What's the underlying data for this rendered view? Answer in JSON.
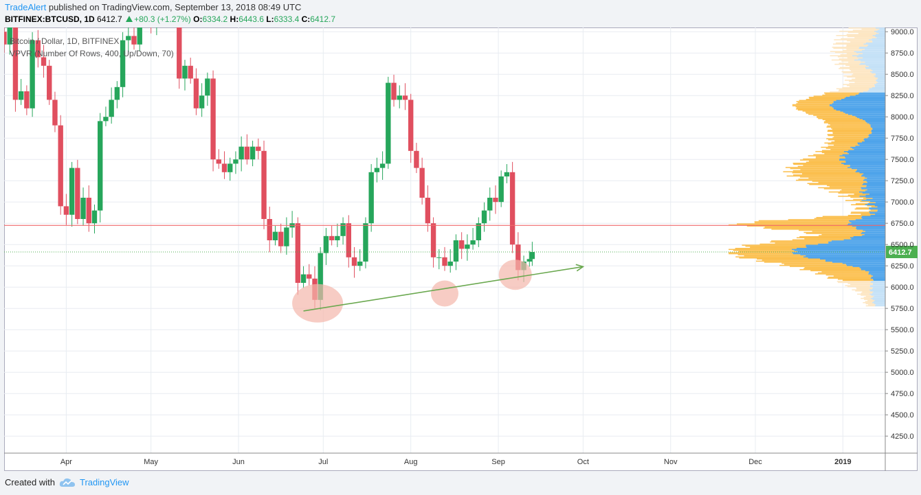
{
  "header": {
    "author": "TradeAlert",
    "published_text": "published on TradingView.com, September 13, 2018 08:49 UTC",
    "symbol": "BITFINEX:BTCUSD, 1D",
    "last": "6412.7",
    "change": "+80.3 (+1.27%)",
    "o_label": "O:",
    "o_value": "6334.2",
    "h_label": "H:",
    "h_value": "6443.6",
    "l_label": "L:",
    "l_value": "6333.4",
    "c_label": "C:",
    "c_value": "6412.7"
  },
  "footer": {
    "created_with": "Created with",
    "brand": "TradingView",
    "logo_icon": "cloud-logo-icon"
  },
  "colors": {
    "up": "#26a65b",
    "down": "#e04f5f",
    "grid": "#e8ecf1",
    "resistance": "#f0696c",
    "price_line": "#4caf50",
    "trend": "#6aa84f",
    "ellipse": "#f4b6ab",
    "vp_up_in": "#fbbf4e",
    "vp_down_in": "#4da3ea",
    "vp_up_out": "#fde6c2",
    "vp_down_out": "#c4e1f7",
    "label_bg": "#4caf50"
  },
  "chart_data": {
    "type": "candlestick",
    "series_name": "Bitcoin / Dollar, 1D, BITFINEX",
    "indicator": "VPVR (Number Of Rows, 400, Up/Down, 70)",
    "y_ticks": [
      "9000.0",
      "8750.0",
      "8500.0",
      "8250.0",
      "8000.0",
      "7750.0",
      "7500.0",
      "7250.0",
      "7000.0",
      "6750.0",
      "6500.0",
      "6250.0",
      "6000.0",
      "5750.0",
      "5500.0",
      "5250.0",
      "5000.0",
      "4750.0",
      "4500.0",
      "4250.0"
    ],
    "x_ticks": [
      {
        "label": "Apr",
        "date": "2018-04-01"
      },
      {
        "label": "May",
        "date": "2018-05-01"
      },
      {
        "label": "Jun",
        "date": "2018-06-01"
      },
      {
        "label": "Jul",
        "date": "2018-07-01"
      },
      {
        "label": "Aug",
        "date": "2018-08-01"
      },
      {
        "label": "Sep",
        "date": "2018-09-01"
      },
      {
        "label": "Oct",
        "date": "2018-10-01"
      },
      {
        "label": "Nov",
        "date": "2018-11-01"
      },
      {
        "label": "Dec",
        "date": "2018-12-01"
      },
      {
        "label": "2019",
        "date": "2019-01-01"
      }
    ],
    "ylim": [
      4050,
      9050
    ],
    "xlim": [
      "2018-03-10",
      "2019-01-16"
    ],
    "last_price": 6412.7,
    "last_price_label": "6412.7",
    "resistance_level": 6725,
    "trendline": {
      "start": [
        "2018-06-24",
        5720
      ],
      "end": [
        "2018-10-01",
        6240
      ]
    },
    "highlight_ellipses": [
      {
        "date": "2018-06-29",
        "price": 5810
      },
      {
        "date": "2018-08-13",
        "price": 5925
      },
      {
        "date": "2018-09-07",
        "price": 6145
      }
    ],
    "closes": [
      {
        "date": "2018-03-10",
        "close": 8850
      },
      {
        "date": "2018-03-12",
        "close": 9200
      },
      {
        "date": "2018-03-14",
        "close": 8200
      },
      {
        "date": "2018-03-16",
        "close": 8300
      },
      {
        "date": "2018-03-18",
        "close": 8100
      },
      {
        "date": "2018-03-20",
        "close": 8900
      },
      {
        "date": "2018-03-22",
        "close": 8700
      },
      {
        "date": "2018-03-24",
        "close": 8600
      },
      {
        "date": "2018-03-26",
        "close": 8200
      },
      {
        "date": "2018-03-28",
        "close": 7900
      },
      {
        "date": "2018-03-30",
        "close": 6950
      },
      {
        "date": "2018-04-01",
        "close": 6850
      },
      {
        "date": "2018-04-03",
        "close": 7400
      },
      {
        "date": "2018-04-05",
        "close": 6800
      },
      {
        "date": "2018-04-07",
        "close": 7050
      },
      {
        "date": "2018-04-09",
        "close": 6750
      },
      {
        "date": "2018-04-11",
        "close": 6900
      },
      {
        "date": "2018-04-13",
        "close": 7950
      },
      {
        "date": "2018-04-15",
        "close": 8000
      },
      {
        "date": "2018-04-17",
        "close": 8200
      },
      {
        "date": "2018-04-19",
        "close": 8350
      },
      {
        "date": "2018-04-21",
        "close": 8900
      },
      {
        "date": "2018-04-23",
        "close": 8950
      },
      {
        "date": "2018-04-25",
        "close": 8850
      },
      {
        "date": "2018-04-27",
        "close": 9250
      },
      {
        "date": "2018-04-29",
        "close": 9300
      },
      {
        "date": "2018-05-01",
        "close": 9100
      },
      {
        "date": "2018-05-03",
        "close": 9550
      },
      {
        "date": "2018-05-05",
        "close": 9700
      },
      {
        "date": "2018-05-07",
        "close": 9400
      },
      {
        "date": "2018-05-09",
        "close": 9300
      },
      {
        "date": "2018-05-11",
        "close": 8450
      },
      {
        "date": "2018-05-13",
        "close": 8600
      },
      {
        "date": "2018-05-15",
        "close": 8450
      },
      {
        "date": "2018-05-17",
        "close": 8100
      },
      {
        "date": "2018-05-19",
        "close": 8250
      },
      {
        "date": "2018-05-21",
        "close": 8450
      },
      {
        "date": "2018-05-23",
        "close": 7500
      },
      {
        "date": "2018-05-25",
        "close": 7450
      },
      {
        "date": "2018-05-27",
        "close": 7350
      },
      {
        "date": "2018-05-29",
        "close": 7450
      },
      {
        "date": "2018-05-31",
        "close": 7500
      },
      {
        "date": "2018-06-02",
        "close": 7650
      },
      {
        "date": "2018-06-04",
        "close": 7500
      },
      {
        "date": "2018-06-06",
        "close": 7650
      },
      {
        "date": "2018-06-08",
        "close": 7600
      },
      {
        "date": "2018-06-10",
        "close": 6800
      },
      {
        "date": "2018-06-12",
        "close": 6550
      },
      {
        "date": "2018-06-14",
        "close": 6650
      },
      {
        "date": "2018-06-16",
        "close": 6480
      },
      {
        "date": "2018-06-18",
        "close": 6700
      },
      {
        "date": "2018-06-20",
        "close": 6750
      },
      {
        "date": "2018-06-22",
        "close": 6050
      },
      {
        "date": "2018-06-24",
        "close": 6150
      },
      {
        "date": "2018-06-26",
        "close": 6100
      },
      {
        "date": "2018-06-28",
        "close": 5850
      },
      {
        "date": "2018-06-30",
        "close": 6400
      },
      {
        "date": "2018-07-02",
        "close": 6600
      },
      {
        "date": "2018-07-04",
        "close": 6550
      },
      {
        "date": "2018-07-06",
        "close": 6600
      },
      {
        "date": "2018-07-08",
        "close": 6750
      },
      {
        "date": "2018-07-10",
        "close": 6350
      },
      {
        "date": "2018-07-12",
        "close": 6250
      },
      {
        "date": "2018-07-14",
        "close": 6300
      },
      {
        "date": "2018-07-16",
        "close": 6750
      },
      {
        "date": "2018-07-18",
        "close": 7350
      },
      {
        "date": "2018-07-20",
        "close": 7400
      },
      {
        "date": "2018-07-22",
        "close": 7450
      },
      {
        "date": "2018-07-24",
        "close": 8400
      },
      {
        "date": "2018-07-26",
        "close": 8200
      },
      {
        "date": "2018-07-28",
        "close": 8250
      },
      {
        "date": "2018-07-30",
        "close": 8200
      },
      {
        "date": "2018-08-01",
        "close": 7600
      },
      {
        "date": "2018-08-03",
        "close": 7400
      },
      {
        "date": "2018-08-05",
        "close": 7050
      },
      {
        "date": "2018-08-07",
        "close": 6750
      },
      {
        "date": "2018-08-09",
        "close": 6350
      },
      {
        "date": "2018-08-11",
        "close": 6350
      },
      {
        "date": "2018-08-13",
        "close": 6250
      },
      {
        "date": "2018-08-15",
        "close": 6300
      },
      {
        "date": "2018-08-17",
        "close": 6550
      },
      {
        "date": "2018-08-19",
        "close": 6450
      },
      {
        "date": "2018-08-21",
        "close": 6500
      },
      {
        "date": "2018-08-23",
        "close": 6550
      },
      {
        "date": "2018-08-25",
        "close": 6750
      },
      {
        "date": "2018-08-27",
        "close": 6900
      },
      {
        "date": "2018-08-29",
        "close": 7050
      },
      {
        "date": "2018-08-31",
        "close": 7000
      },
      {
        "date": "2018-09-02",
        "close": 7300
      },
      {
        "date": "2018-09-04",
        "close": 7350
      },
      {
        "date": "2018-09-06",
        "close": 6500
      },
      {
        "date": "2018-09-08",
        "close": 6200
      },
      {
        "date": "2018-09-10",
        "close": 6300
      },
      {
        "date": "2018-09-12",
        "close": 6330
      },
      {
        "date": "2018-09-13",
        "close": 6412.7
      }
    ]
  }
}
